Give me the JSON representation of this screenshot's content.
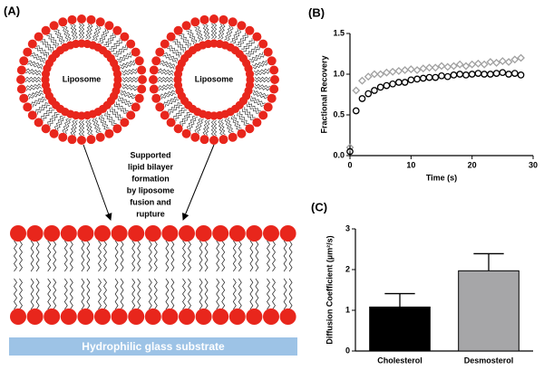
{
  "panel_a": {
    "label": "(A)",
    "liposome_labels": [
      "Liposome",
      "Liposome"
    ],
    "caption_lines": [
      "Supported",
      "lipid bilayer",
      "formation",
      "by liposome",
      "fusion and",
      "rupture"
    ],
    "substrate": "Hydrophilic glass substrate"
  },
  "chart_data": [
    {
      "type": "scatter",
      "panel_label": "(B)",
      "xlabel": "Time (s)",
      "ylabel": "Fractional Recovery",
      "xlim": [
        0,
        30
      ],
      "xticks": [
        0,
        10,
        20,
        30
      ],
      "ylim": [
        0,
        1.5
      ],
      "yticks": [
        {
          "value": 0,
          "label": "0.0"
        },
        {
          "value": 0.5,
          "label": "0.5"
        },
        {
          "value": 1,
          "label": "1.0"
        },
        {
          "value": 1.5,
          "label": "1.5"
        }
      ],
      "series": [
        {
          "color": "#a0a0a0",
          "marker": "diamond",
          "x": [
            0,
            1,
            2,
            3,
            4,
            5,
            6,
            7,
            8,
            9,
            10,
            11,
            12,
            13,
            14,
            15,
            16,
            17,
            18,
            19,
            20,
            21,
            22,
            23,
            24,
            25,
            26,
            27,
            28
          ],
          "values": [
            0.1,
            0.8,
            0.92,
            0.97,
            1.0,
            1.0,
            1.02,
            1.03,
            1.04,
            1.05,
            1.06,
            1.05,
            1.07,
            1.08,
            1.08,
            1.1,
            1.09,
            1.1,
            1.12,
            1.1,
            1.12,
            1.13,
            1.12,
            1.15,
            1.14,
            1.16,
            1.15,
            1.18,
            1.2
          ]
        },
        {
          "color": "#000000",
          "marker": "circle",
          "x": [
            0,
            1,
            2,
            3,
            4,
            5,
            6,
            7,
            8,
            9,
            10,
            11,
            12,
            13,
            14,
            15,
            16,
            17,
            18,
            19,
            20,
            21,
            22,
            23,
            24,
            25,
            26,
            27,
            28
          ],
          "values": [
            0.05,
            0.55,
            0.7,
            0.76,
            0.8,
            0.84,
            0.86,
            0.88,
            0.9,
            0.9,
            0.93,
            0.94,
            0.95,
            0.96,
            0.96,
            0.98,
            0.97,
            0.99,
            1.0,
            0.99,
            1.0,
            1.01,
            1.0,
            1.0,
            1.01,
            1.02,
            1.0,
            1.01,
            0.99
          ]
        }
      ]
    },
    {
      "type": "bar",
      "panel_label": "(C)",
      "ylabel": "Diffusion Coefficient (µm²/s)",
      "categories": [
        "Cholesterol",
        "Desmosterol"
      ],
      "values": [
        1.08,
        1.97
      ],
      "errors": [
        0.33,
        0.42
      ],
      "colors": [
        "#000000",
        "#a6a6a8"
      ],
      "ylim": [
        0,
        3
      ],
      "yticks": [
        0,
        1,
        2,
        3
      ]
    }
  ]
}
